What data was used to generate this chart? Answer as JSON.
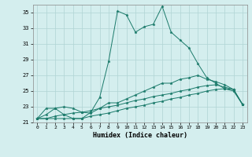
{
  "xlabel": "Humidex (Indice chaleur)",
  "bg_color": "#d4eeee",
  "grid_color": "#b0d4d4",
  "line_color": "#1a7a6a",
  "xlim": [
    -0.5,
    23.5
  ],
  "ylim": [
    21,
    36
  ],
  "yticks": [
    21,
    23,
    25,
    27,
    29,
    31,
    33,
    35
  ],
  "xticks": [
    0,
    1,
    2,
    3,
    4,
    5,
    6,
    7,
    8,
    9,
    10,
    11,
    12,
    13,
    14,
    15,
    16,
    17,
    18,
    19,
    20,
    21,
    22,
    23
  ],
  "series": [
    [
      21.5,
      22.8,
      22.8,
      22.0,
      21.5,
      21.5,
      22.3,
      24.2,
      28.8,
      35.2,
      34.7,
      32.5,
      33.2,
      33.5,
      35.8,
      32.5,
      31.5,
      30.5,
      28.5,
      26.7,
      26.0,
      25.3,
      25.2,
      23.3
    ],
    [
      21.5,
      22.0,
      22.8,
      23.0,
      22.8,
      22.3,
      22.2,
      22.8,
      23.5,
      23.5,
      24.0,
      24.5,
      25.0,
      25.5,
      26.0,
      26.0,
      26.5,
      26.7,
      27.0,
      26.5,
      26.2,
      25.8,
      25.2,
      23.3
    ],
    [
      21.5,
      21.5,
      21.8,
      22.0,
      22.2,
      22.3,
      22.5,
      22.8,
      23.0,
      23.2,
      23.5,
      23.8,
      24.0,
      24.3,
      24.5,
      24.7,
      25.0,
      25.2,
      25.5,
      25.7,
      25.8,
      25.5,
      25.2,
      23.3
    ],
    [
      21.5,
      21.5,
      21.5,
      21.5,
      21.5,
      21.5,
      21.8,
      22.0,
      22.2,
      22.5,
      22.8,
      23.0,
      23.2,
      23.5,
      23.7,
      24.0,
      24.2,
      24.5,
      24.7,
      25.0,
      25.2,
      25.3,
      25.0,
      23.3
    ]
  ]
}
